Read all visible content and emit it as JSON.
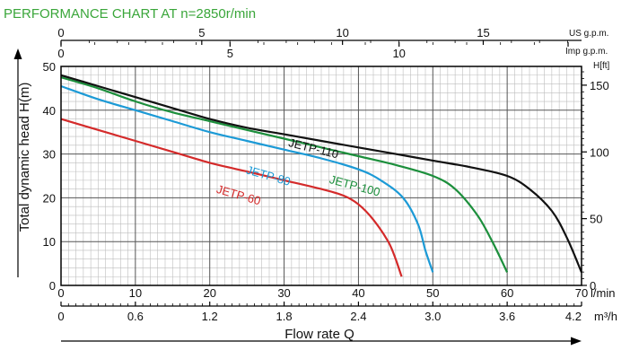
{
  "chart_data": {
    "type": "line",
    "title": "PERFORMANCE CHART AT n=2850r/min",
    "ylabel": "Total dynamic head H(m)",
    "xlabel": "Flow rate Q",
    "x_unit": "l/min",
    "x_unit_m3": "m³/h",
    "top_us_label": "US g.p.m.",
    "top_imp_label": "Imp g.p.m.",
    "right_label": "H[ft]",
    "xlim": [
      0,
      70
    ],
    "ylim": [
      0,
      50
    ],
    "grid": true,
    "x_ticks": [
      "0",
      "10",
      "20",
      "30",
      "40",
      "50",
      "60",
      "70"
    ],
    "y_ticks": [
      "0",
      "10",
      "20",
      "30",
      "40",
      "50"
    ],
    "m3h_ticks": [
      "0",
      "0.6",
      "1.2",
      "1.8",
      "2.4",
      "3.0",
      "3.6",
      "4.2"
    ],
    "us_gpm_ticks": [
      "0",
      "5",
      "10",
      "15"
    ],
    "imp_gpm_ticks": [
      "0",
      "5",
      "10"
    ],
    "ft_ticks": [
      "0",
      "50",
      "100",
      "150"
    ],
    "series": [
      {
        "name": "JETP-60",
        "color": "#d42a2a",
        "x": [
          0,
          5,
          10,
          15,
          20,
          25,
          30,
          35,
          38,
          40,
          42,
          44,
          45,
          45.8
        ],
        "y": [
          38,
          35.5,
          33,
          30.5,
          28,
          26,
          24,
          22,
          20.5,
          18.5,
          15,
          10,
          6,
          2
        ]
      },
      {
        "name": "JETP-80",
        "color": "#1c9ad6",
        "x": [
          0,
          5,
          10,
          15,
          20,
          25,
          30,
          35,
          40,
          43,
          46,
          48,
          49,
          50
        ],
        "y": [
          45.5,
          42.5,
          40,
          37.5,
          35,
          33,
          31,
          29,
          26.5,
          24,
          20,
          14,
          8,
          3
        ]
      },
      {
        "name": "JETP-100",
        "color": "#1c8f3c",
        "x": [
          0,
          5,
          10,
          15,
          20,
          25,
          30,
          35,
          40,
          45,
          50,
          53,
          56,
          58,
          60
        ],
        "y": [
          47.5,
          45,
          42,
          39.5,
          37.5,
          35.5,
          33.5,
          31.5,
          29.5,
          27.5,
          25,
          22,
          16,
          10,
          3
        ]
      },
      {
        "name": "JETP-110",
        "color": "#111111",
        "x": [
          0,
          5,
          10,
          15,
          20,
          25,
          30,
          35,
          40,
          45,
          50,
          55,
          60,
          63,
          66,
          68,
          70
        ],
        "y": [
          48,
          45.5,
          43,
          40.5,
          38,
          36,
          34.5,
          33,
          31.5,
          30,
          28.5,
          27,
          25,
          22,
          17,
          11,
          3
        ]
      }
    ]
  }
}
